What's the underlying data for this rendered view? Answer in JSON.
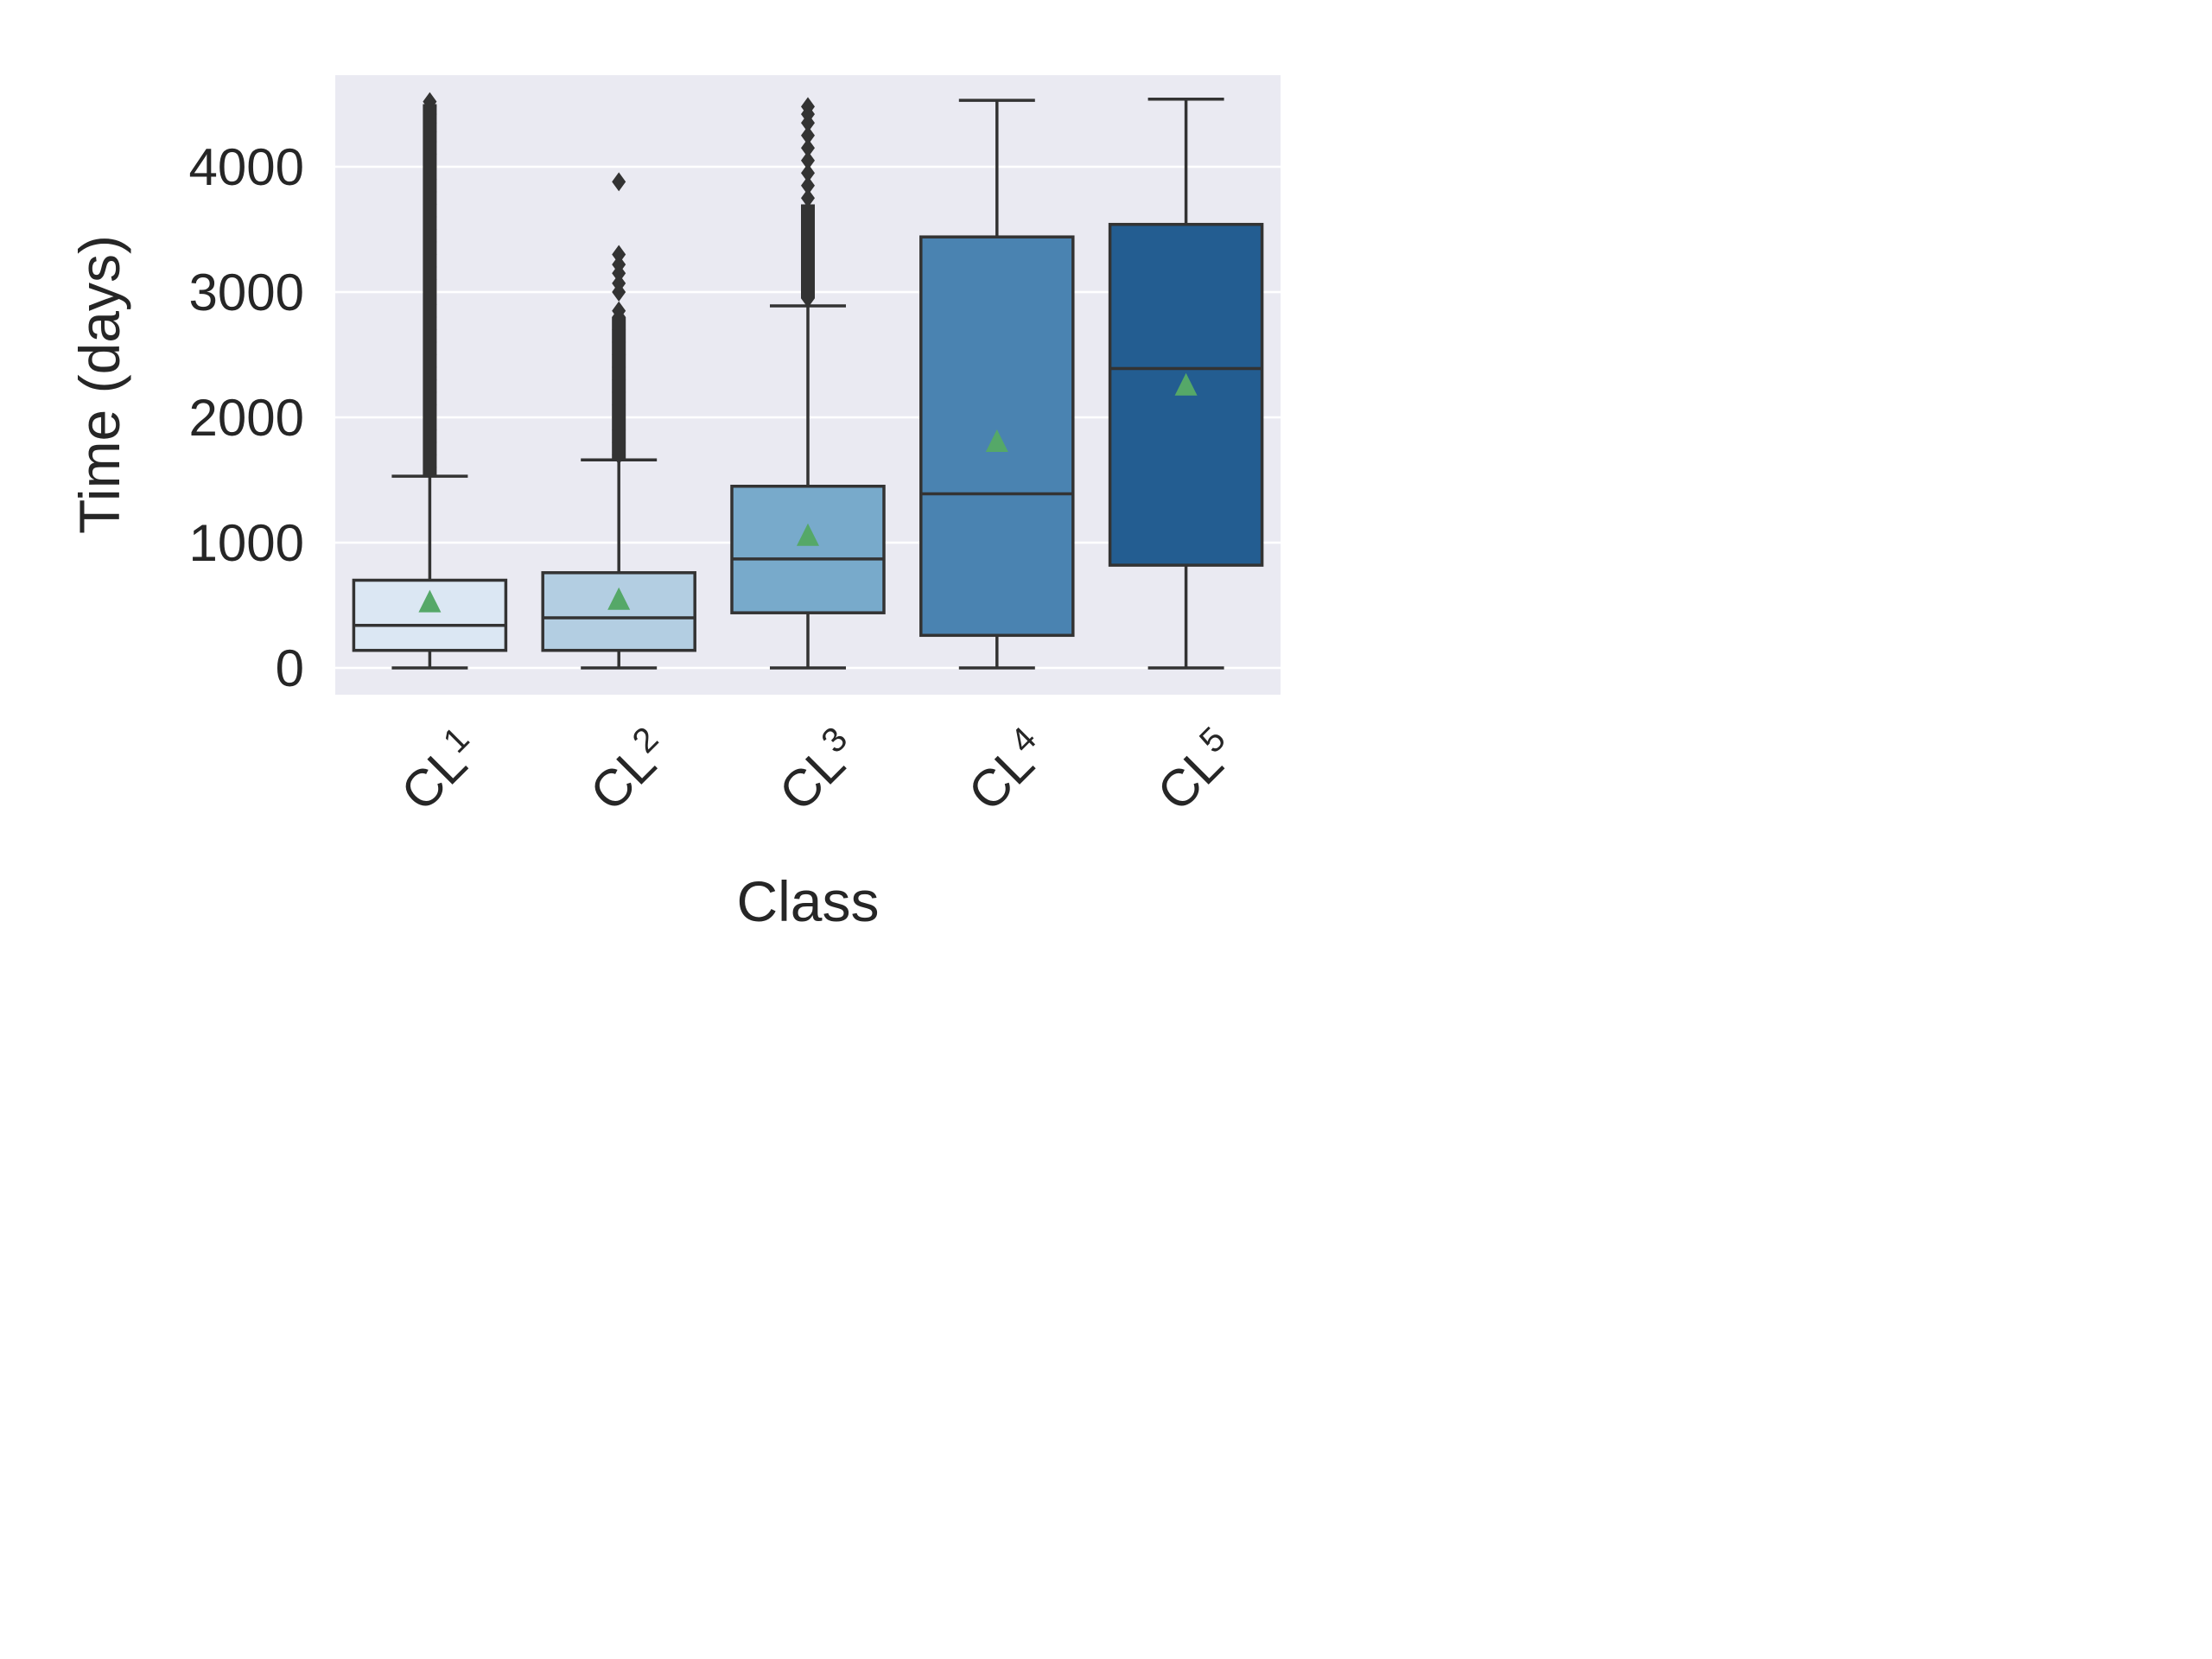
{
  "chart_data": {
    "type": "box",
    "xlabel": "Class",
    "ylabel": "Time (days)",
    "yticks": [
      0,
      1000,
      2000,
      3000,
      4000
    ],
    "ylim": [
      -200,
      4750
    ],
    "grid": true,
    "colors": {
      "background": "#eaeaf2",
      "grid": "#ffffff",
      "line": "#333333",
      "mean_marker": "#55a868",
      "boxes": [
        "#dbe7f3",
        "#b3cee2",
        "#78aacb",
        "#4a83b1",
        "#235d91"
      ]
    },
    "categories": [
      {
        "name": "CL",
        "sub": "1"
      },
      {
        "name": "CL",
        "sub": "2"
      },
      {
        "name": "CL",
        "sub": "3"
      },
      {
        "name": "CL",
        "sub": "4"
      },
      {
        "name": "CL",
        "sub": "5"
      }
    ],
    "boxes": [
      {
        "whisker_low": 0,
        "q1": 140,
        "median": 340,
        "q3": 700,
        "whisker_high": 1530,
        "mean": 520,
        "outlier_range": [
          1530,
          4500
        ],
        "outliers": [
          1600,
          1700,
          1800,
          1900,
          2000,
          2100,
          2200,
          2300,
          2400,
          2500,
          2600,
          2700,
          2800,
          2900,
          3000,
          3100,
          3200,
          3300,
          3400,
          3500,
          3600,
          3700,
          3800,
          3900,
          4000,
          4100,
          4200,
          4280,
          4350,
          4420,
          4480,
          4520
        ]
      },
      {
        "whisker_low": 0,
        "q1": 140,
        "median": 400,
        "q3": 760,
        "whisker_high": 1660,
        "mean": 540,
        "outlier_range": [
          1660,
          2800
        ],
        "outliers": [
          1700,
          1800,
          1900,
          2000,
          2100,
          2200,
          2300,
          2400,
          2500,
          2600,
          2700,
          2800,
          2850,
          3000,
          3070,
          3150,
          3220,
          3300,
          3880
        ]
      },
      {
        "whisker_low": 0,
        "q1": 440,
        "median": 870,
        "q3": 1450,
        "whisker_high": 2890,
        "mean": 1050,
        "outlier_range": [
          2950,
          3700
        ],
        "outliers": [
          2950,
          3050,
          3150,
          3250,
          3350,
          3450,
          3550,
          3650,
          3750,
          3850,
          3950,
          4050,
          4150,
          4250,
          4350,
          4420,
          4480
        ]
      },
      {
        "whisker_low": 0,
        "q1": 260,
        "median": 1390,
        "q3": 3440,
        "whisker_high": 4530,
        "mean": 1800,
        "outlier_range": null,
        "outliers": []
      },
      {
        "whisker_low": 0,
        "q1": 820,
        "median": 2390,
        "q3": 3540,
        "whisker_high": 4540,
        "mean": 2250,
        "outlier_range": null,
        "outliers": []
      }
    ]
  }
}
